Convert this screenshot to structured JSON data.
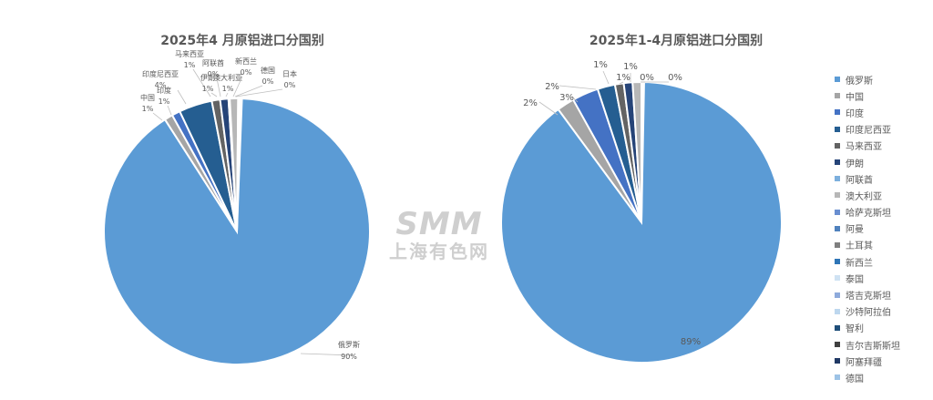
{
  "chart_data": [
    {
      "type": "pie",
      "title": "2025年4 月原铝进口分国别",
      "slices": [
        {
          "label": "俄罗斯",
          "value": 90,
          "display": "90%",
          "color": "#5b9bd5"
        },
        {
          "label": "中国",
          "value": 1,
          "display": "1%",
          "color": "#a5a5a5"
        },
        {
          "label": "印度",
          "value": 1,
          "display": "1%",
          "color": "#4472c4"
        },
        {
          "label": "印度尼西亚",
          "value": 4,
          "display": "4%",
          "color": "#255e91"
        },
        {
          "label": "马来西亚",
          "value": 1,
          "display": "1%",
          "color": "#636363"
        },
        {
          "label": "伊朗",
          "value": 1,
          "display": "1%",
          "color": "#264478"
        },
        {
          "label": "阿联酋",
          "value": 0,
          "display": "0%",
          "color": "#7cafdd"
        },
        {
          "label": "澳大利亚",
          "value": 1,
          "display": "1%",
          "color": "#b7b7b7"
        },
        {
          "label": "新西兰",
          "value": 0,
          "display": "0%",
          "color": "#a9d18e"
        },
        {
          "label": "德国",
          "value": 0,
          "display": "0%",
          "color": "#9dc3e6"
        },
        {
          "label": "日本",
          "value": 0,
          "display": "0%",
          "color": "#d9d9d9"
        }
      ]
    },
    {
      "type": "pie",
      "title": "2025年1-4月原铝进口分国别",
      "slices": [
        {
          "label": "俄罗斯",
          "value": 89,
          "display": "89%",
          "color": "#5b9bd5"
        },
        {
          "label": "中国",
          "value": 2,
          "display": "2%",
          "color": "#a5a5a5"
        },
        {
          "label": "印度",
          "value": 3,
          "display": "3%",
          "color": "#4472c4"
        },
        {
          "label": "印度尼西亚",
          "value": 2,
          "display": "2%",
          "color": "#255e91"
        },
        {
          "label": "马来西亚",
          "value": 1,
          "display": "1%",
          "color": "#636363"
        },
        {
          "label": "伊朗",
          "value": 1,
          "display": "1%",
          "color": "#264478"
        },
        {
          "label": "澳大利亚",
          "value": 1,
          "display": "1%",
          "color": "#b7b7b7"
        },
        {
          "label": "德国",
          "value": 0,
          "display": "0%",
          "color": "#9dc3e6"
        },
        {
          "label": "泰国",
          "value": 0,
          "display": "0%",
          "color": "#cfe2f3"
        }
      ]
    }
  ],
  "legend": {
    "items": [
      {
        "label": "俄罗斯",
        "color": "#5b9bd5"
      },
      {
        "label": "中国",
        "color": "#a5a5a5"
      },
      {
        "label": "印度",
        "color": "#4472c4"
      },
      {
        "label": "印度尼西亚",
        "color": "#255e91"
      },
      {
        "label": "马来西亚",
        "color": "#636363"
      },
      {
        "label": "伊朗",
        "color": "#264478"
      },
      {
        "label": "阿联酋",
        "color": "#7cafdd"
      },
      {
        "label": "澳大利亚",
        "color": "#b7b7b7"
      },
      {
        "label": "哈萨克斯坦",
        "color": "#698ed0"
      },
      {
        "label": "阿曼",
        "color": "#4f81bd"
      },
      {
        "label": "土耳其",
        "color": "#7f7f7f"
      },
      {
        "label": "新西兰",
        "color": "#2e75b6"
      },
      {
        "label": "泰国",
        "color": "#cfe2f3"
      },
      {
        "label": "塔吉克斯坦",
        "color": "#8eaadb"
      },
      {
        "label": "沙特阿拉伯",
        "color": "#bdd7ee"
      },
      {
        "label": "智利",
        "color": "#1f4e79"
      },
      {
        "label": "吉尔吉斯斯坦",
        "color": "#404040"
      },
      {
        "label": "阿塞拜疆",
        "color": "#203864"
      },
      {
        "label": "德国",
        "color": "#9dc3e6"
      }
    ]
  },
  "watermark": {
    "logo": "SMM",
    "sub": "上海有色网"
  }
}
